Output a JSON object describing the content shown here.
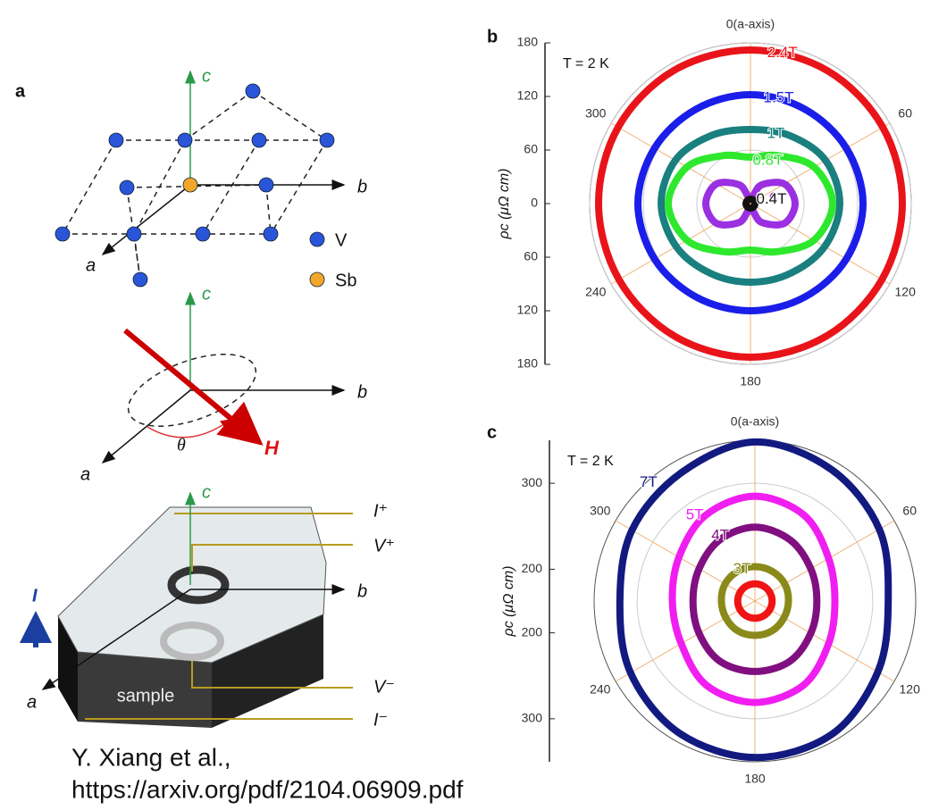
{
  "panel_a": {
    "letter": "a",
    "lattice": {
      "c_label": "c",
      "b_label": "b",
      "a_label": "a",
      "legend": [
        "V",
        "Sb"
      ]
    },
    "field": {
      "c_label": "c",
      "b_label": "b",
      "a_label": "a",
      "angle_label": "θ",
      "field_label": "H"
    },
    "sample": {
      "c_label": "c",
      "b_label": "b",
      "a_label": "a",
      "current_label": "I",
      "sample_label": "sample",
      "contacts": [
        "I⁺",
        "V⁺",
        "V⁻",
        "I⁻"
      ]
    }
  },
  "chart_data": [
    {
      "type": "polar",
      "letter": "b",
      "title": "T = 2 K",
      "rlabel": "ρc (μΩ cm)",
      "rlim": [
        0,
        180
      ],
      "rticks": [
        0,
        60,
        120,
        180
      ],
      "thetaticks": [
        {
          "value": 0,
          "label": "0(a-axis)"
        },
        60,
        120,
        180,
        240,
        300
      ],
      "theta": [
        0,
        30,
        60,
        90,
        120,
        150,
        180,
        210,
        240,
        270,
        300,
        330
      ],
      "series": [
        {
          "name": "2.4T",
          "color": "#e8141a",
          "values": [
            172,
            172,
            171,
            170,
            170,
            171,
            172,
            171,
            170,
            170,
            171,
            172
          ]
        },
        {
          "name": "1.5T",
          "color": "#1a1ee8",
          "values": [
            122,
            122,
            124,
            126,
            124,
            121,
            120,
            121,
            124,
            126,
            124,
            122
          ]
        },
        {
          "name": "1T",
          "color": "#1a7f7f",
          "values": [
            83,
            88,
            97,
            100,
            96,
            90,
            88,
            90,
            96,
            100,
            97,
            88
          ]
        },
        {
          "name": "0.8T",
          "color": "#2ee82e",
          "values": [
            52,
            62,
            82,
            92,
            82,
            62,
            52,
            62,
            82,
            92,
            82,
            62
          ]
        },
        {
          "name": "0.6T",
          "color": "#9b30e0",
          "values": [
            6,
            24,
            44,
            50,
            44,
            24,
            6,
            24,
            44,
            50,
            44,
            24
          ]
        },
        {
          "name": "0.4T",
          "color": "#111111",
          "values": [
            5,
            5,
            5,
            5,
            5,
            5,
            5,
            5,
            5,
            5,
            5,
            5
          ]
        }
      ]
    },
    {
      "type": "polar",
      "letter": "c",
      "title": "T = 2 K",
      "rlabel": "ρc (μΩ cm)",
      "rlim": [
        163,
        350
      ],
      "rticks": [
        200,
        300
      ],
      "thetaticks": [
        {
          "value": 0,
          "label": "0(a-axis)"
        },
        60,
        120,
        180,
        240,
        300
      ],
      "theta": [
        0,
        30,
        60,
        90,
        120,
        150,
        180,
        210,
        240,
        270,
        300,
        330
      ],
      "series": [
        {
          "name": "7T",
          "color": "#121a80",
          "values": [
            348,
            340,
            330,
            318,
            328,
            342,
            345,
            340,
            330,
            320,
            328,
            335
          ]
        },
        {
          "name": "5T",
          "color": "#f01ef0",
          "values": [
            285,
            278,
            262,
            256,
            262,
            276,
            281,
            276,
            262,
            259,
            265,
            278
          ]
        },
        {
          "name": "4T",
          "color": "#800f80",
          "values": [
            249,
            245,
            238,
            235,
            238,
            244,
            245,
            244,
            238,
            235,
            238,
            245
          ]
        },
        {
          "name": "3T",
          "color": "#8a8a1a",
          "values": [
            203,
            203,
            203,
            202,
            202,
            203,
            203,
            203,
            202,
            202,
            203,
            203
          ]
        },
        {
          "color": "#f01414",
          "values": [
            183,
            183,
            183,
            183,
            183,
            183,
            183,
            183,
            183,
            183,
            183,
            183
          ]
        }
      ]
    }
  ],
  "citation": [
    "Y. Xiang et al.,",
    "https://arxiv.org/pdf/2104.06909.pdf"
  ]
}
